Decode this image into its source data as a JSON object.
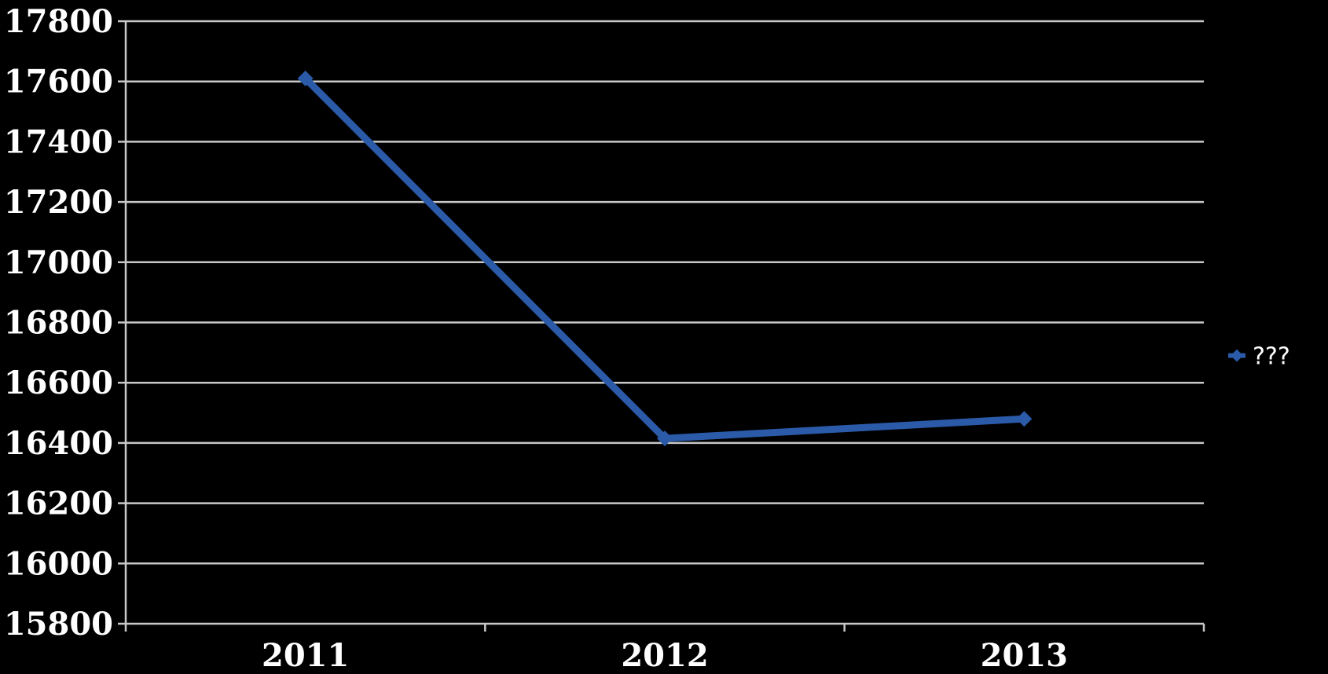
{
  "chart_data": {
    "type": "line",
    "title": "",
    "xlabel": "",
    "ylabel": "",
    "categories": [
      "2011",
      "2012",
      "2013"
    ],
    "series": [
      {
        "name": "???",
        "values": [
          17610,
          16415,
          16480
        ],
        "color": "#2a5aa8"
      }
    ],
    "ylim": [
      15800,
      17800
    ],
    "ytick_step": 200,
    "grid": true,
    "legend_position": "right",
    "background": "#000000",
    "gridline_color": "#c8c8c8",
    "text_color": "#ffffff"
  }
}
